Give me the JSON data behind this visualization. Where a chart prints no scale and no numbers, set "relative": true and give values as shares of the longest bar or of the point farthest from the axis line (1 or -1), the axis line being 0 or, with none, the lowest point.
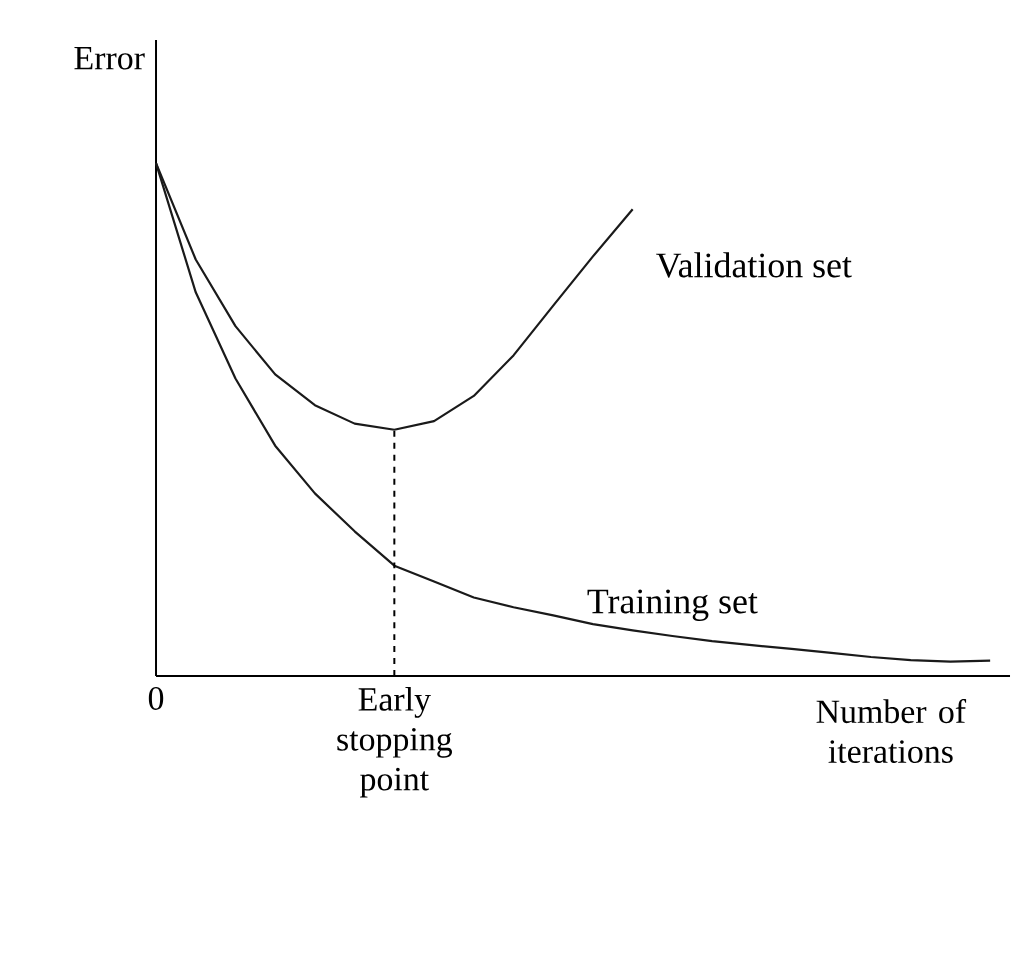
{
  "chart_data": {
    "type": "line",
    "relative": true,
    "xlabel": "Number of iterations",
    "ylabel": "Error",
    "categories": [
      "0",
      null,
      null,
      null,
      null,
      null,
      "Early stopping point",
      null,
      null,
      null,
      null,
      null,
      null,
      null,
      null,
      null,
      null,
      null,
      null,
      null,
      null,
      null
    ],
    "series": [
      {
        "name": "Validation set",
        "color": "#1a1a1a",
        "values": [
          1,
          0.812,
          0.682,
          0.588,
          0.528,
          0.492,
          0.48,
          0.497,
          0.546,
          0.625,
          0.722,
          0.818,
          0.91,
          null,
          null,
          null,
          null,
          null,
          null,
          null,
          null,
          null
        ]
      },
      {
        "name": "Training set",
        "color": "#1a1a1a",
        "values": [
          1,
          0.748,
          0.58,
          0.449,
          0.356,
          0.282,
          0.215,
          0.184,
          0.153,
          0.134,
          0.118,
          0.101,
          0.089,
          0.078,
          0.068,
          0.06,
          0.053,
          0.045,
          0.037,
          0.031,
          0.028,
          0.03
        ]
      }
    ],
    "ref_lines": [
      {
        "axis": "x",
        "value": "Early stopping point",
        "line_style": "dashed"
      }
    ],
    "grid": false,
    "legend": false,
    "marker": "none",
    "line_style": "solid"
  }
}
